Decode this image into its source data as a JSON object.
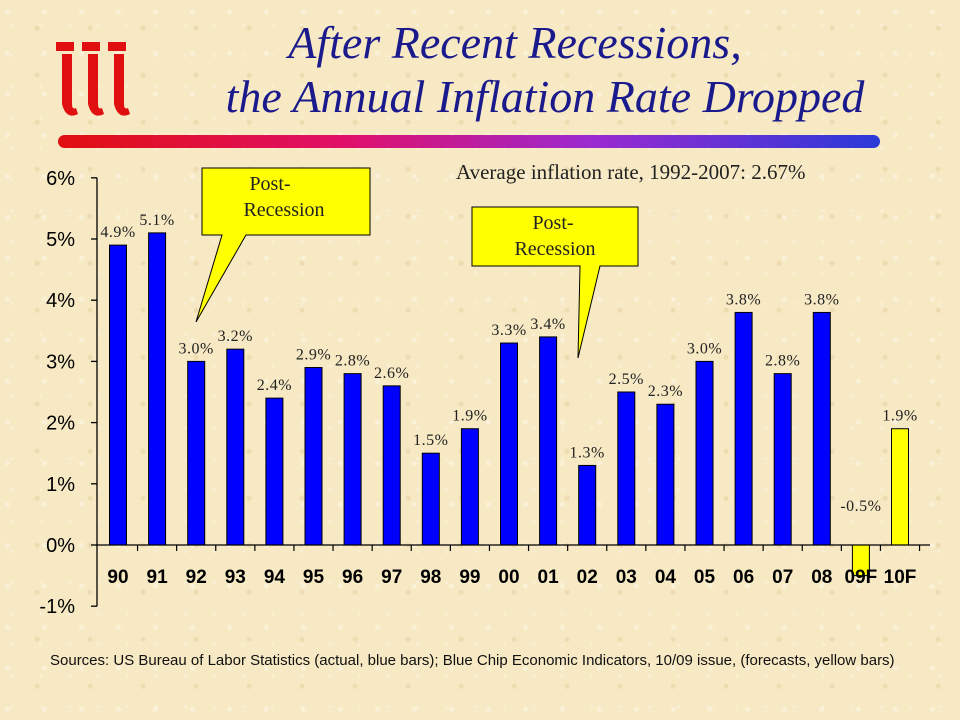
{
  "title": {
    "line1": "After Recent Recessions,",
    "line2": "the Annual Inflation Rate Dropped"
  },
  "logo": {
    "icon": "iii-logo",
    "color": "#e01010"
  },
  "average_note": "Average inflation rate, 1992-2007: 2.67%",
  "callouts": [
    {
      "line1": "Post-",
      "line2": "Recession"
    },
    {
      "line1": "Post-",
      "line2": "Recession"
    }
  ],
  "sources": "Sources: US Bureau of Labor Statistics (actual, blue bars); Blue Chip Economic Indicators, 10/09 issue, (forecasts, yellow bars)",
  "colors": {
    "actual": "#0000ff",
    "forecast": "#ffff00",
    "bar_stroke": "#000000",
    "callout_fill": "#ffff00",
    "title": "#1a1a8c"
  },
  "chart_data": {
    "type": "bar",
    "categories": [
      "90",
      "91",
      "92",
      "93",
      "94",
      "95",
      "96",
      "97",
      "98",
      "99",
      "00",
      "01",
      "02",
      "03",
      "04",
      "05",
      "06",
      "07",
      "08",
      "09F",
      "10F"
    ],
    "values": [
      4.9,
      5.1,
      3.0,
      3.2,
      2.4,
      2.9,
      2.8,
      2.6,
      1.5,
      1.9,
      3.3,
      3.4,
      1.3,
      2.5,
      2.3,
      3.0,
      3.8,
      2.8,
      3.8,
      -0.5,
      1.9
    ],
    "data_labels": [
      "4.9%",
      "5.1%",
      "3.0%",
      "3.2%",
      "2.4%",
      "2.9%",
      "2.8%",
      "2.6%",
      "1.5%",
      "1.9%",
      "3.3%",
      "3.4%",
      "1.3%",
      "2.5%",
      "2.3%",
      "3.0%",
      "3.8%",
      "2.8%",
      "3.8%",
      "-0.5%",
      "1.9%"
    ],
    "forecast": [
      false,
      false,
      false,
      false,
      false,
      false,
      false,
      false,
      false,
      false,
      false,
      false,
      false,
      false,
      false,
      false,
      false,
      false,
      false,
      true,
      true
    ],
    "y_ticks": [
      "-1%",
      "0%",
      "1%",
      "2%",
      "3%",
      "4%",
      "5%",
      "6%"
    ],
    "ylim": [
      -1,
      6
    ],
    "title": "",
    "xlabel": "",
    "ylabel": "",
    "grid": false,
    "legend": "none"
  }
}
